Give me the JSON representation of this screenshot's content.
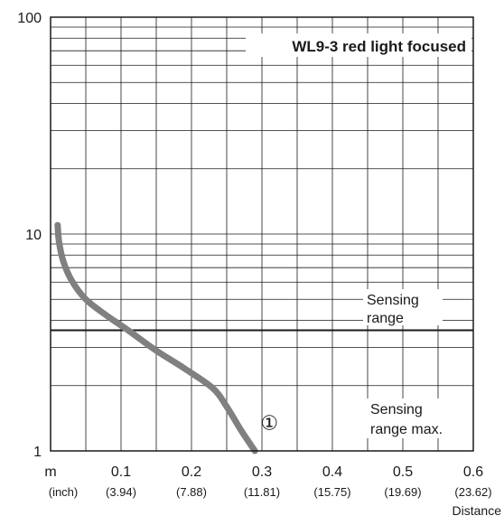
{
  "chart_data": {
    "type": "line",
    "title": "WL9-3 red light focused",
    "xlabel": "Distance",
    "x_unit": "m",
    "x_unit_alt": "(inch)",
    "xlim": [
      0,
      0.6
    ],
    "ylim": [
      1,
      100
    ],
    "y_scale": "log",
    "grid": true,
    "x_ticks": [
      {
        "value": 0.1,
        "label": "0.1",
        "inch": "(3.94)"
      },
      {
        "value": 0.2,
        "label": "0.2",
        "inch": "(7.88)"
      },
      {
        "value": 0.3,
        "label": "0.3",
        "inch": "(11.81)"
      },
      {
        "value": 0.4,
        "label": "0.4",
        "inch": "(15.75)"
      },
      {
        "value": 0.5,
        "label": "0.5",
        "inch": "(19.69)"
      },
      {
        "value": 0.6,
        "label": "0.6",
        "inch": "(23.62)"
      }
    ],
    "y_ticks": [
      {
        "value": 1,
        "label": "1"
      },
      {
        "value": 10,
        "label": "10"
      },
      {
        "value": 100,
        "label": "100"
      }
    ],
    "series": [
      {
        "marker_label": "①",
        "color": "#808080",
        "points": [
          {
            "x": 0.01,
            "y": 11
          },
          {
            "x": 0.012,
            "y": 9.2
          },
          {
            "x": 0.018,
            "y": 7.5
          },
          {
            "x": 0.03,
            "y": 6.1
          },
          {
            "x": 0.05,
            "y": 5.0
          },
          {
            "x": 0.08,
            "y": 4.2
          },
          {
            "x": 0.11,
            "y": 3.6
          },
          {
            "x": 0.15,
            "y": 2.9
          },
          {
            "x": 0.19,
            "y": 2.4
          },
          {
            "x": 0.23,
            "y": 1.95
          },
          {
            "x": 0.25,
            "y": 1.6
          },
          {
            "x": 0.27,
            "y": 1.25
          },
          {
            "x": 0.29,
            "y": 1.0
          }
        ]
      }
    ],
    "reference_line": {
      "y": 3.6
    },
    "annotations": {
      "sensing_range": [
        "Sensing",
        "range"
      ],
      "sensing_range_max": [
        "Sensing",
        "range max."
      ]
    }
  }
}
